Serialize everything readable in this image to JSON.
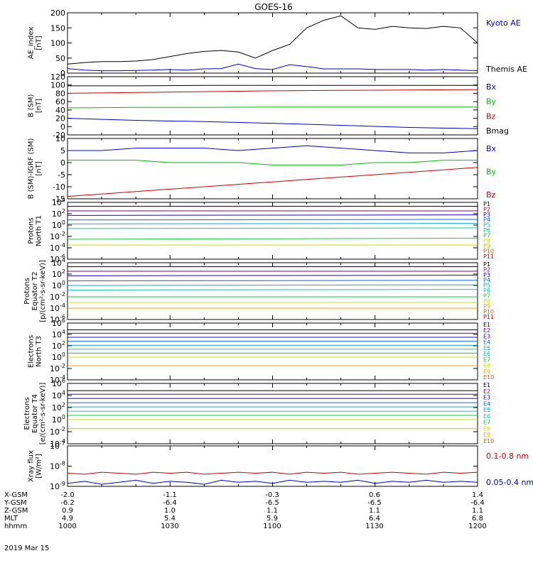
{
  "title": "GOES-16",
  "date_label": "2019 Mar 15",
  "colors": {
    "blue": "#0000cc",
    "red": "#cc0000",
    "green": "#00bb00",
    "black": "#000000",
    "p_ch": [
      "#000000",
      "#7a0077",
      "#2200cc",
      "#0066ff",
      "#00aadd",
      "#00ccaa",
      "#11cc33",
      "#ccdd00",
      "#eeaa00",
      "#dd5500",
      "#cc0000"
    ]
  },
  "orbit_table": {
    "rows": [
      {
        "label": "X-GSM",
        "values": [
          "-2.0",
          "-1.1",
          "-0.3",
          "0.6",
          "1.4"
        ]
      },
      {
        "label": "Y-GSM",
        "values": [
          "-6.2",
          "-6.4",
          "-6.5",
          "-6.5",
          "-6.4"
        ]
      },
      {
        "label": "Z-GSM",
        "values": [
          "0.9",
          "1.0",
          "1.1",
          "1.1",
          "1.1"
        ]
      },
      {
        "label": "MLT",
        "values": [
          "4.9",
          "5.4",
          "5.9",
          "6.4",
          "6.8"
        ]
      },
      {
        "label": "hhmm",
        "values": [
          "1000",
          "1030",
          "1100",
          "1130",
          "1200"
        ]
      }
    ]
  },
  "chart_data": [
    {
      "type": "line",
      "ylabel": [
        "AE_index",
        "[nT]"
      ],
      "ylim": [
        0,
        200
      ],
      "yticks": [
        "0",
        "50",
        "100",
        "150",
        "200"
      ],
      "x": [
        0,
        5,
        10,
        15,
        20,
        25,
        30,
        35,
        40,
        45,
        50,
        55,
        60,
        65,
        70,
        75,
        80,
        85,
        90,
        95,
        100,
        105,
        110,
        115,
        120
      ],
      "xlim": [
        0,
        120
      ],
      "series": [
        {
          "name": "Kyoto AE",
          "color": "#0000cc",
          "values": [
            15,
            10,
            8,
            8,
            9,
            10,
            12,
            10,
            14,
            15,
            30,
            15,
            12,
            28,
            22,
            14,
            14,
            14,
            12,
            12,
            12,
            10,
            12,
            10,
            8
          ]
        },
        {
          "name": "Themis AE",
          "color": "#000000",
          "values": [
            30,
            35,
            38,
            38,
            40,
            45,
            55,
            65,
            72,
            75,
            70,
            50,
            75,
            95,
            150,
            175,
            190,
            150,
            145,
            155,
            150,
            148,
            155,
            150,
            100
          ]
        }
      ],
      "legend": [
        {
          "text": "Kyoto AE",
          "color": "#0000cc"
        },
        {
          "text": "Themis AE",
          "color": "#000000"
        }
      ]
    },
    {
      "type": "line",
      "ylabel": [
        "B (SM)",
        "[nT]"
      ],
      "ylim": [
        -20,
        120
      ],
      "yticks": [
        "-20",
        "0",
        "20",
        "40",
        "60",
        "80",
        "100",
        "120"
      ],
      "x": [
        0,
        20,
        40,
        60,
        80,
        100,
        120
      ],
      "xlim": [
        0,
        120
      ],
      "series": [
        {
          "name": "Bx",
          "color": "#0000cc",
          "values": [
            20,
            15,
            12,
            8,
            3,
            -2,
            -5
          ]
        },
        {
          "name": "By",
          "color": "#00bb00",
          "values": [
            45,
            46,
            46,
            47,
            47,
            47,
            47
          ]
        },
        {
          "name": "Bz",
          "color": "#cc0000",
          "values": [
            80,
            82,
            84,
            86,
            87,
            88,
            89
          ]
        },
        {
          "name": "Bmag",
          "color": "#000000",
          "values": [
            98,
            98,
            99,
            99,
            99,
            99,
            99
          ]
        }
      ],
      "legend": [
        {
          "text": "Bx",
          "color": "#0000cc"
        },
        {
          "text": "By",
          "color": "#00bb00"
        },
        {
          "text": "Bz",
          "color": "#cc0000"
        },
        {
          "text": "Bmag",
          "color": "#000000"
        }
      ]
    },
    {
      "type": "line",
      "ylabel": [
        "B (SM)-IGRF (SM)",
        "[nT]"
      ],
      "ylim": [
        -15,
        10
      ],
      "yticks": [
        "-15",
        "-10",
        "-5",
        "0",
        "5",
        "10"
      ],
      "x": [
        0,
        10,
        20,
        30,
        40,
        50,
        60,
        70,
        80,
        90,
        100,
        110,
        120
      ],
      "xlim": [
        0,
        120
      ],
      "series": [
        {
          "name": "Bx",
          "color": "#0000cc",
          "values": [
            5,
            5,
            6,
            6,
            6,
            5,
            6,
            7,
            6,
            5,
            4,
            4,
            5
          ]
        },
        {
          "name": "By",
          "color": "#00bb00",
          "values": [
            1,
            1,
            1,
            0,
            0,
            0,
            -1,
            -1,
            -1,
            0,
            0,
            1,
            1
          ]
        },
        {
          "name": "Bz",
          "color": "#cc0000",
          "values": [
            -14,
            -13,
            -12,
            -11,
            -10,
            -9,
            -8,
            -7,
            -6,
            -5,
            -4,
            -3,
            -2
          ]
        }
      ],
      "legend": [
        {
          "text": "Bx",
          "color": "#0000cc"
        },
        {
          "text": "By",
          "color": "#00bb00"
        },
        {
          "text": "Bz",
          "color": "#cc0000"
        }
      ]
    },
    {
      "type": "line",
      "ylabel": [
        "Protons",
        "North T1"
      ],
      "ylim": [
        -6,
        4
      ],
      "ytick_labels": [
        {
          "e": "-6",
          "v": -6
        },
        {
          "e": "-4",
          "v": -4
        },
        {
          "e": "-2",
          "v": -2
        },
        {
          "e": "0",
          "v": 0
        },
        {
          "e": "2",
          "v": 2
        },
        {
          "e": "4",
          "v": 4
        }
      ],
      "log_scale": true,
      "xlim": [
        0,
        120
      ],
      "x": [
        0,
        120
      ],
      "series": [
        {
          "name": "P1",
          "values": [
            3.3,
            3.3
          ]
        },
        {
          "name": "P2",
          "values": [
            2.5,
            2.5
          ]
        },
        {
          "name": "P3",
          "values": [
            1.7,
            1.8
          ]
        },
        {
          "name": "P4",
          "values": [
            0.9,
            1.0
          ]
        },
        {
          "name": "P5",
          "values": [
            0.2,
            0.3
          ]
        },
        {
          "name": "P6",
          "values": [
            -0.6,
            -0.5
          ]
        },
        {
          "name": "P7",
          "values": [
            -2.5,
            -2.3
          ]
        },
        {
          "name": "P8",
          "values": [
            -3.5,
            -3.5
          ]
        }
      ],
      "legend": [
        "P1",
        "P2",
        "P3",
        "P4",
        "P5",
        "P6",
        "P7",
        "P8",
        "P9",
        "P10",
        "P11"
      ]
    },
    {
      "type": "line",
      "ylabel": [
        "Protons",
        "Equator T2",
        "[p/(cm²-s-sr-keV)]"
      ],
      "ylim": [
        -6,
        4
      ],
      "ytick_labels": [
        {
          "e": "-6",
          "v": -6
        },
        {
          "e": "-4",
          "v": -4
        },
        {
          "e": "-2",
          "v": -2
        },
        {
          "e": "0",
          "v": 0
        },
        {
          "e": "2",
          "v": 2
        },
        {
          "e": "4",
          "v": 4
        }
      ],
      "log_scale": true,
      "xlim": [
        0,
        120
      ],
      "x": [
        0,
        120
      ],
      "series": [
        {
          "name": "P1",
          "values": [
            3.3,
            3.3
          ]
        },
        {
          "name": "P2",
          "values": [
            2.5,
            2.5
          ]
        },
        {
          "name": "P3",
          "values": [
            1.7,
            1.8
          ]
        },
        {
          "name": "P4",
          "values": [
            0.8,
            0.9
          ]
        },
        {
          "name": "P5",
          "values": [
            0.0,
            0.1
          ]
        },
        {
          "name": "P6",
          "values": [
            -0.8,
            -0.7
          ]
        },
        {
          "name": "P7",
          "values": [
            -2.0,
            -2.0
          ]
        },
        {
          "name": "P8",
          "values": [
            -3.0,
            -3.0
          ]
        },
        {
          "name": "P9",
          "values": [
            -4.0,
            -4.0
          ]
        }
      ],
      "legend": [
        "P1",
        "P2",
        "P3",
        "P4",
        "P5",
        "P6",
        "P7",
        "P8",
        "P9",
        "P10",
        "P11"
      ]
    },
    {
      "type": "line",
      "ylabel": [
        "Electrons",
        "North T3"
      ],
      "ylim": [
        -4,
        6
      ],
      "ytick_labels": [
        {
          "e": "-4",
          "v": -4
        },
        {
          "e": "-2",
          "v": -2
        },
        {
          "e": "0",
          "v": 0
        },
        {
          "e": "2",
          "v": 2
        },
        {
          "e": "4",
          "v": 4
        },
        {
          "e": "6",
          "v": 6
        }
      ],
      "log_scale": true,
      "xlim": [
        0,
        120
      ],
      "x": [
        0,
        120
      ],
      "series": [
        {
          "name": "E1",
          "values": [
            4.8,
            4.8
          ]
        },
        {
          "name": "E2",
          "values": [
            4.2,
            4.2
          ]
        },
        {
          "name": "E3",
          "values": [
            3.5,
            3.5
          ]
        },
        {
          "name": "E4",
          "values": [
            2.8,
            2.8
          ]
        },
        {
          "name": "E5",
          "values": [
            2.1,
            2.1
          ]
        },
        {
          "name": "E6",
          "values": [
            1.4,
            1.4
          ]
        },
        {
          "name": "E7",
          "values": [
            0.7,
            0.7
          ]
        },
        {
          "name": "E8",
          "values": [
            0.0,
            0.0
          ]
        },
        {
          "name": "E9",
          "values": [
            -1.5,
            -1.5
          ]
        }
      ],
      "legend": [
        "E1",
        "E2",
        "E3",
        "E4",
        "E5",
        "E6",
        "E7",
        "E8",
        "E9",
        "E10"
      ]
    },
    {
      "type": "line",
      "ylabel": [
        "Electrons",
        "Equator T4",
        "[e/(cm²-s-sr-keV)]"
      ],
      "ylim": [
        -4,
        6
      ],
      "ytick_labels": [
        {
          "e": "-4",
          "v": -4
        },
        {
          "e": "-2",
          "v": -2
        },
        {
          "e": "0",
          "v": 0
        },
        {
          "e": "2",
          "v": 2
        },
        {
          "e": "4",
          "v": 4
        },
        {
          "e": "6",
          "v": 6
        }
      ],
      "log_scale": true,
      "xlim": [
        0,
        120
      ],
      "x": [
        0,
        120
      ],
      "series": [
        {
          "name": "E1",
          "values": [
            4.8,
            4.8
          ]
        },
        {
          "name": "E2",
          "values": [
            4.2,
            4.2
          ]
        },
        {
          "name": "E3",
          "values": [
            3.5,
            3.5
          ]
        },
        {
          "name": "E4",
          "values": [
            2.8,
            2.8
          ]
        },
        {
          "name": "E5",
          "values": [
            2.1,
            2.1
          ]
        },
        {
          "name": "E6",
          "values": [
            1.4,
            1.4
          ]
        },
        {
          "name": "E7",
          "values": [
            0.7,
            0.7
          ]
        },
        {
          "name": "E8",
          "values": [
            0.0,
            0.0
          ]
        },
        {
          "name": "E9",
          "values": [
            -1.5,
            -1.5
          ]
        }
      ],
      "legend": [
        "E1",
        "E2",
        "E3",
        "E4",
        "E5",
        "E6",
        "E7",
        "E8",
        "E9",
        "E10"
      ]
    },
    {
      "type": "line",
      "ylabel": [
        "Xray flux",
        "[W/m²]"
      ],
      "ylim": [
        -9,
        -7
      ],
      "ytick_labels": [
        {
          "e": "-9",
          "v": -9
        },
        {
          "e": "-8",
          "v": -8
        },
        {
          "e": "-7",
          "v": -7
        }
      ],
      "log_scale": true,
      "x": [
        0,
        5,
        10,
        15,
        20,
        25,
        30,
        35,
        40,
        45,
        50,
        55,
        60,
        65,
        70,
        75,
        80,
        85,
        90,
        95,
        100,
        105,
        110,
        115,
        120
      ],
      "xlim": [
        0,
        120
      ],
      "series": [
        {
          "name": "0.1-0.8 nm",
          "color": "#cc0000",
          "values": [
            -8.35,
            -8.4,
            -8.3,
            -8.35,
            -8.4,
            -8.3,
            -8.35,
            -8.3,
            -8.4,
            -8.35,
            -8.3,
            -8.35,
            -8.3,
            -8.4,
            -8.3,
            -8.35,
            -8.3,
            -8.4,
            -8.35,
            -8.3,
            -8.35,
            -8.4,
            -8.3,
            -8.35,
            -8.3
          ]
        },
        {
          "name": "0.05-0.4 nm",
          "color": "#0000cc",
          "values": [
            -8.85,
            -8.75,
            -8.9,
            -8.8,
            -8.7,
            -8.85,
            -8.75,
            -8.8,
            -8.9,
            -8.7,
            -8.8,
            -8.75,
            -8.85,
            -8.7,
            -8.8,
            -8.75,
            -8.8,
            -8.7,
            -8.85,
            -8.75,
            -8.8,
            -8.7,
            -8.8,
            -8.75,
            -8.8
          ]
        }
      ],
      "legend": [
        {
          "text": "0.1-0.8 nm",
          "color": "#cc0000"
        },
        {
          "text": "0.05-0.4 nm",
          "color": "#0000cc"
        }
      ]
    }
  ]
}
